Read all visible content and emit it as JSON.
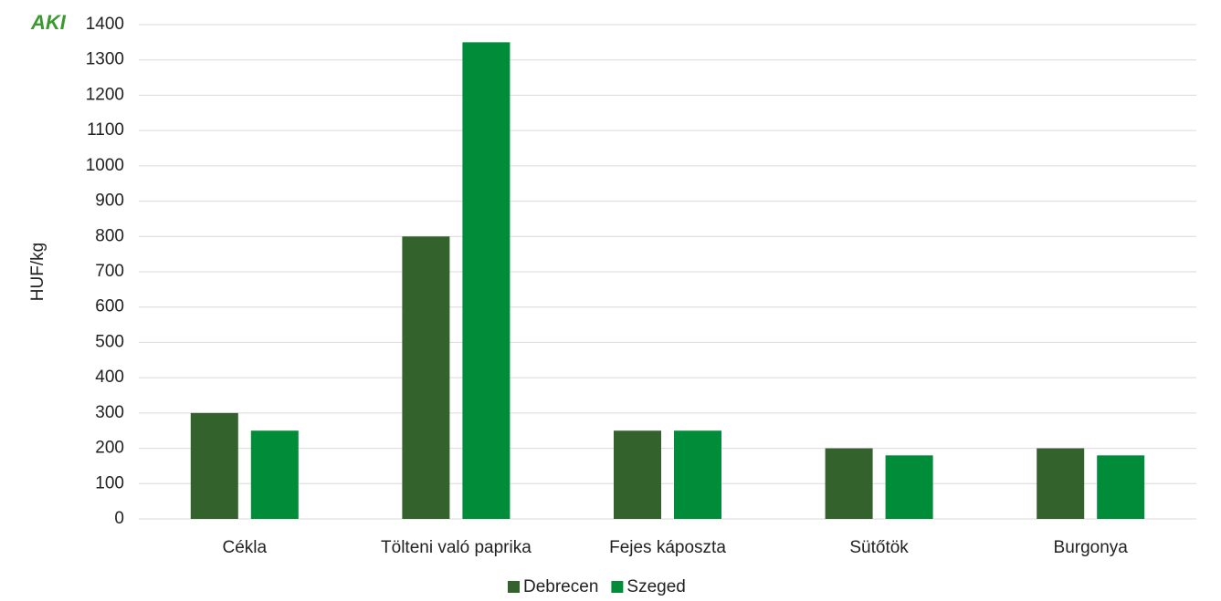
{
  "chart_data": {
    "type": "bar",
    "logo": "AKI",
    "y_label": "HUF/kg",
    "categories": [
      "Cékla",
      "Tölteni való paprika",
      "Fejes káposzta",
      "Sütőtök",
      "Burgonya"
    ],
    "series": [
      {
        "name": "Debrecen",
        "color": "#34622c",
        "values": [
          300,
          800,
          250,
          200,
          200
        ]
      },
      {
        "name": "Szeged",
        "color": "#008c39",
        "values": [
          250,
          1350,
          250,
          180,
          180
        ]
      }
    ],
    "ylim": [
      0,
      1400
    ],
    "yticks": [
      0,
      100,
      200,
      300,
      400,
      500,
      600,
      700,
      800,
      900,
      1000,
      1100,
      1200,
      1300,
      1400
    ],
    "grid": true,
    "legend": "bottom"
  }
}
